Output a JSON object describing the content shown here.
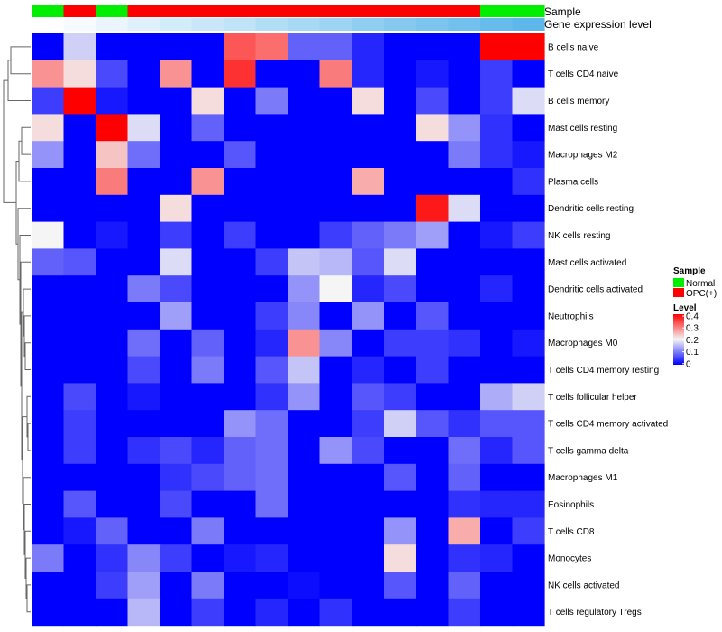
{
  "chart_data": {
    "type": "heatmap",
    "title": "",
    "annotations": {
      "sample_label": "Sample",
      "expression_label": "Gene expression level",
      "sample": [
        "Normal",
        "OPC(+)",
        "Normal",
        "OPC(+)",
        "OPC(+)",
        "OPC(+)",
        "OPC(+)",
        "OPC(+)",
        "OPC(+)",
        "OPC(+)",
        "OPC(+)",
        "OPC(+)",
        "OPC(+)",
        "OPC(+)",
        "Normal",
        "Normal"
      ],
      "expression": [
        0.0,
        0.03,
        0.06,
        0.1,
        0.13,
        0.16,
        0.19,
        0.23,
        0.26,
        0.29,
        0.33,
        0.36,
        0.39,
        0.42,
        0.45,
        0.48
      ]
    },
    "rows": [
      "B cells naive",
      "T cells CD4 naive",
      "B cells memory",
      "Mast cells resting",
      "Macrophages M2",
      "Plasma cells",
      "Dendritic cells resting",
      "NK cells resting",
      "Mast cells activated",
      "Dendritic cells activated",
      "Neutrophils",
      "Macrophages M0",
      "T cells CD4 memory resting",
      "T cells follicular helper",
      "T cells CD4 memory activated",
      "T cells gamma delta",
      "Macrophages M1",
      "Eosinophils",
      "T cells CD8",
      "Monocytes",
      "NK cells activated",
      "T cells regulatory  Tregs"
    ],
    "values": [
      [
        0,
        0.17,
        0,
        0,
        0,
        0,
        0.33,
        0.31,
        0.08,
        0.08,
        0.03,
        0,
        0,
        0,
        0.4,
        0.4
      ],
      [
        0.28,
        0.22,
        0.06,
        0,
        0.28,
        0,
        0.36,
        0,
        0,
        0.3,
        0.03,
        0,
        0.02,
        0,
        0.05,
        0
      ],
      [
        0.05,
        0.4,
        0.02,
        0,
        0,
        0.22,
        0,
        0.1,
        0,
        0,
        0.22,
        0,
        0.06,
        0,
        0.05,
        0.18
      ],
      [
        0.22,
        0,
        0.4,
        0.18,
        0,
        0.08,
        0,
        0,
        0,
        0,
        0,
        0,
        0.22,
        0.12,
        0.04,
        0
      ],
      [
        0.12,
        0,
        0.24,
        0.09,
        0,
        0,
        0.07,
        0,
        0,
        0,
        0,
        0,
        0,
        0.1,
        0.04,
        0.02
      ],
      [
        0,
        0,
        0.3,
        0,
        0,
        0.28,
        0,
        0,
        0,
        0,
        0.26,
        0,
        0,
        0,
        0,
        0.04
      ],
      [
        0,
        0,
        0,
        0,
        0.22,
        0,
        0,
        0,
        0,
        0,
        0,
        0,
        0.38,
        0.18,
        0,
        0
      ],
      [
        0.2,
        0,
        0.02,
        0,
        0.05,
        0,
        0.05,
        0,
        0,
        0.05,
        0.08,
        0.1,
        0.13,
        0,
        0.02,
        0.05
      ],
      [
        0.08,
        0.07,
        0,
        0,
        0.18,
        0,
        0,
        0.05,
        0.16,
        0.15,
        0.07,
        0.18,
        0,
        0,
        0,
        0
      ],
      [
        0,
        0,
        0,
        0.1,
        0.06,
        0,
        0,
        0,
        0.12,
        0.2,
        0.03,
        0.06,
        0,
        0,
        0.03,
        0
      ],
      [
        0,
        0,
        0,
        0,
        0.13,
        0,
        0,
        0.05,
        0.11,
        0,
        0.12,
        0,
        0.07,
        0,
        0,
        0
      ],
      [
        0,
        0,
        0,
        0.09,
        0,
        0.08,
        0,
        0.03,
        0.28,
        0.11,
        0,
        0.05,
        0.05,
        0.04,
        0,
        0.02
      ],
      [
        0,
        0,
        0,
        0.06,
        0,
        0.1,
        0,
        0.07,
        0.16,
        0,
        0.03,
        0,
        0.05,
        0,
        0,
        0
      ],
      [
        0,
        0.06,
        0,
        0.02,
        0,
        0,
        0,
        0.04,
        0.12,
        0,
        0.07,
        0.05,
        0,
        0,
        0.14,
        0.17
      ],
      [
        0,
        0.05,
        0,
        0,
        0,
        0,
        0.12,
        0.09,
        0,
        0,
        0.05,
        0.17,
        0.07,
        0.04,
        0.07,
        0.07
      ],
      [
        0,
        0.05,
        0,
        0.04,
        0.06,
        0.03,
        0.08,
        0.09,
        0,
        0.12,
        0.06,
        0,
        0,
        0.09,
        0.03,
        0.07
      ],
      [
        0,
        0,
        0,
        0,
        0.04,
        0.06,
        0.08,
        0.09,
        0,
        0,
        0,
        0.07,
        0,
        0.08,
        0,
        0
      ],
      [
        0,
        0.07,
        0,
        0,
        0.06,
        0,
        0,
        0.09,
        0,
        0,
        0,
        0,
        0,
        0.04,
        0.03,
        0.03
      ],
      [
        0,
        0.02,
        0.08,
        0,
        0,
        0.1,
        0,
        0,
        0,
        0,
        0,
        0.12,
        0,
        0.26,
        0,
        0.05
      ],
      [
        0.1,
        0,
        0.04,
        0.11,
        0.05,
        0,
        0.02,
        0.03,
        0,
        0,
        0,
        0.22,
        0,
        0.04,
        0.03,
        0
      ],
      [
        0,
        0,
        0.05,
        0.13,
        0,
        0.1,
        0,
        0,
        0.01,
        0,
        0,
        0.07,
        0,
        0.08,
        0,
        0
      ],
      [
        0,
        0,
        0,
        0.15,
        0,
        0.05,
        0,
        0.03,
        0,
        0.04,
        0,
        0,
        0,
        0.05,
        0,
        0
      ]
    ],
    "color_scale": {
      "min": 0,
      "max": 0.4,
      "low": "#0000FF",
      "mid": "#F5F5F5",
      "high": "#FF0000",
      "mid_value": 0.2
    },
    "sample_colors": {
      "Normal": "#00EE00",
      "OPC(+)": "#FF0000"
    },
    "expression_colors": {
      "low": "#FFFFFF",
      "high": "#56B4E9"
    },
    "legend": {
      "sample_title": "Sample",
      "sample_items": [
        "Normal",
        "OPC(+)"
      ],
      "level_title": "Level",
      "level_ticks": [
        "0.4",
        "0.3",
        "0.2",
        "0.1",
        "0"
      ],
      "placement": "right"
    }
  }
}
